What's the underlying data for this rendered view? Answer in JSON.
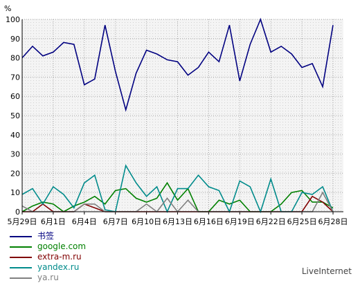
{
  "chart_data": {
    "type": "line",
    "unit_label": "%",
    "ylim": [
      0,
      100
    ],
    "yticks": [
      0,
      10,
      20,
      30,
      40,
      50,
      60,
      70,
      80,
      90,
      100
    ],
    "grid": true,
    "categories": [
      "5月29日",
      "5月30日",
      "5月31日",
      "6月1日",
      "6月2日",
      "6月3日",
      "6月4日",
      "6月5日",
      "6月6日",
      "6月7日",
      "6月8日",
      "6月9日",
      "6月10日",
      "6月11日",
      "6月12日",
      "6月13日",
      "6月14日",
      "6月15日",
      "6月16日",
      "6月17日",
      "6月18日",
      "6月19日",
      "6月20日",
      "6月21日",
      "6月22日",
      "6月23日",
      "6月24日",
      "6月25日",
      "6月26日",
      "6月27日",
      "6月28日",
      "6月29日"
    ],
    "xtick_labels": [
      "5月29日",
      "6月1日",
      "6月4日",
      "6月7日",
      "6月10日",
      "6月13日",
      "6月16日",
      "6月19日",
      "6月22日",
      "6月25日",
      "6月28日"
    ],
    "xtick_index": [
      0,
      3,
      6,
      9,
      12,
      15,
      18,
      21,
      24,
      27,
      30
    ],
    "series": [
      {
        "name": "书签",
        "color": "#000080",
        "values": [
          80,
          86,
          81,
          83,
          88,
          87,
          66,
          69,
          97,
          73,
          53,
          72,
          84,
          82,
          79,
          78,
          71,
          75,
          83,
          78,
          97,
          68,
          87,
          100,
          83,
          86,
          82,
          75,
          77,
          65,
          97,
          null
        ]
      },
      {
        "name": "google.com",
        "color": "#008000",
        "values": [
          0,
          3,
          5,
          4,
          0,
          3,
          5,
          8,
          4,
          11,
          12,
          7,
          5,
          7,
          15,
          6,
          12,
          0,
          0,
          6,
          4,
          6,
          0,
          0,
          0,
          4,
          10,
          11,
          5,
          5,
          2,
          null
        ]
      },
      {
        "name": "extra-m.ru",
        "color": "#800000",
        "values": [
          0,
          0,
          4,
          0,
          0,
          0,
          4,
          2,
          0,
          0,
          0,
          0,
          0,
          0,
          0,
          0,
          0,
          0,
          0,
          0,
          0,
          0,
          0,
          0,
          0,
          0,
          0,
          0,
          8,
          5,
          0,
          null
        ]
      },
      {
        "name": "yandex.ru",
        "color": "#008b8b",
        "values": [
          9,
          12,
          4,
          13,
          9,
          2,
          15,
          19,
          1,
          0,
          24,
          15,
          8,
          13,
          0,
          12,
          12,
          19,
          13,
          11,
          0,
          16,
          13,
          0,
          17,
          0,
          0,
          10,
          9,
          13,
          0,
          null
        ]
      },
      {
        "name": "ya.ru",
        "color": "#808080",
        "values": [
          3,
          0,
          0,
          0,
          0,
          0,
          4,
          4,
          0,
          0,
          0,
          0,
          4,
          0,
          7,
          0,
          6,
          0,
          0,
          0,
          0,
          0,
          0,
          0,
          0,
          0,
          0,
          0,
          0,
          10,
          0,
          null
        ]
      }
    ]
  },
  "footer": {
    "brand": "LiveInternet"
  }
}
